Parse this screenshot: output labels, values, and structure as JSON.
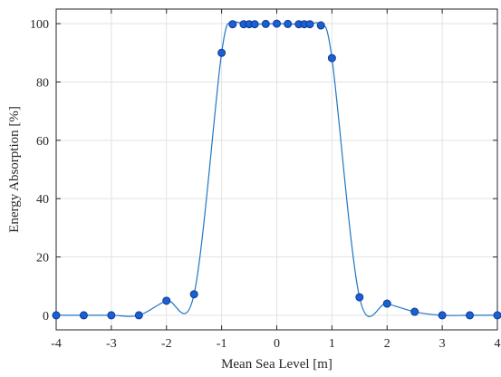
{
  "chart_data": {
    "type": "line",
    "xlabel": "Mean Sea Level [m]",
    "ylabel": "Energy Absorption [%]",
    "xlim": [
      -4,
      4
    ],
    "ylim": [
      -5,
      105
    ],
    "xticks": [
      -4,
      -3,
      -2,
      -1,
      0,
      1,
      2,
      3,
      4
    ],
    "yticks": [
      0,
      20,
      40,
      60,
      80,
      100
    ],
    "grid": true,
    "line_color": "#1f77c4",
    "marker_color": "#1a5fd6",
    "marker_edge_color": "#0d3a8c",
    "series": [
      {
        "points": [
          [
            -4,
            0
          ],
          [
            -3.5,
            0
          ],
          [
            -3,
            0
          ],
          [
            -2.5,
            0
          ],
          [
            -2,
            5
          ],
          [
            -1.5,
            7.2
          ],
          [
            -1,
            90
          ],
          [
            -0.8,
            99.8
          ],
          [
            -0.6,
            99.8
          ],
          [
            -0.5,
            99.8
          ],
          [
            -0.4,
            99.8
          ],
          [
            -0.2,
            99.9
          ],
          [
            0,
            100
          ],
          [
            0.2,
            99.9
          ],
          [
            0.4,
            99.8
          ],
          [
            0.5,
            99.8
          ],
          [
            0.6,
            99.8
          ],
          [
            0.8,
            99.4
          ],
          [
            1,
            88.2
          ],
          [
            1.5,
            6.2
          ],
          [
            2,
            4
          ],
          [
            2.5,
            1.2
          ],
          [
            3,
            0
          ],
          [
            3.5,
            0
          ],
          [
            4,
            0
          ]
        ]
      }
    ]
  }
}
